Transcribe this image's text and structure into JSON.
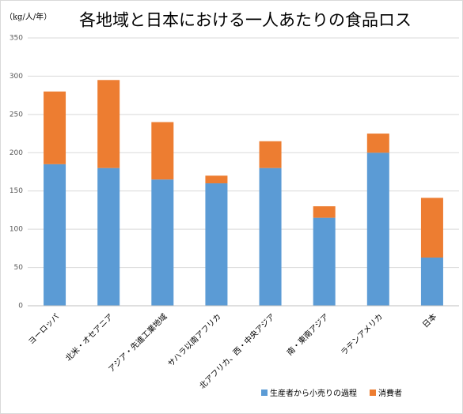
{
  "chart_data": {
    "type": "stacked-bar",
    "title": "各地域と日本における一人あたりの食品ロス",
    "y_label": "（kg/人/年）",
    "categories": [
      "ヨーロッパ",
      "北米・オセアニア",
      "アジア・先進工業地域",
      "サハラ以南アフリカ",
      "北アフリカ、西・中央アジア",
      "南・東南アジア",
      "ラテンアメリカ",
      "日本"
    ],
    "series": [
      {
        "name": "生産者から小売りの過程",
        "color": "#5b9bd5",
        "values": [
          185,
          180,
          165,
          160,
          180,
          115,
          200,
          63
        ]
      },
      {
        "name": "消費者",
        "color": "#ed7d31",
        "values": [
          95,
          115,
          75,
          10,
          35,
          15,
          25,
          78
        ]
      }
    ],
    "ylim": [
      0,
      350
    ],
    "yticks": [
      0,
      50,
      100,
      150,
      200,
      250,
      300,
      350
    ],
    "grid": true
  }
}
